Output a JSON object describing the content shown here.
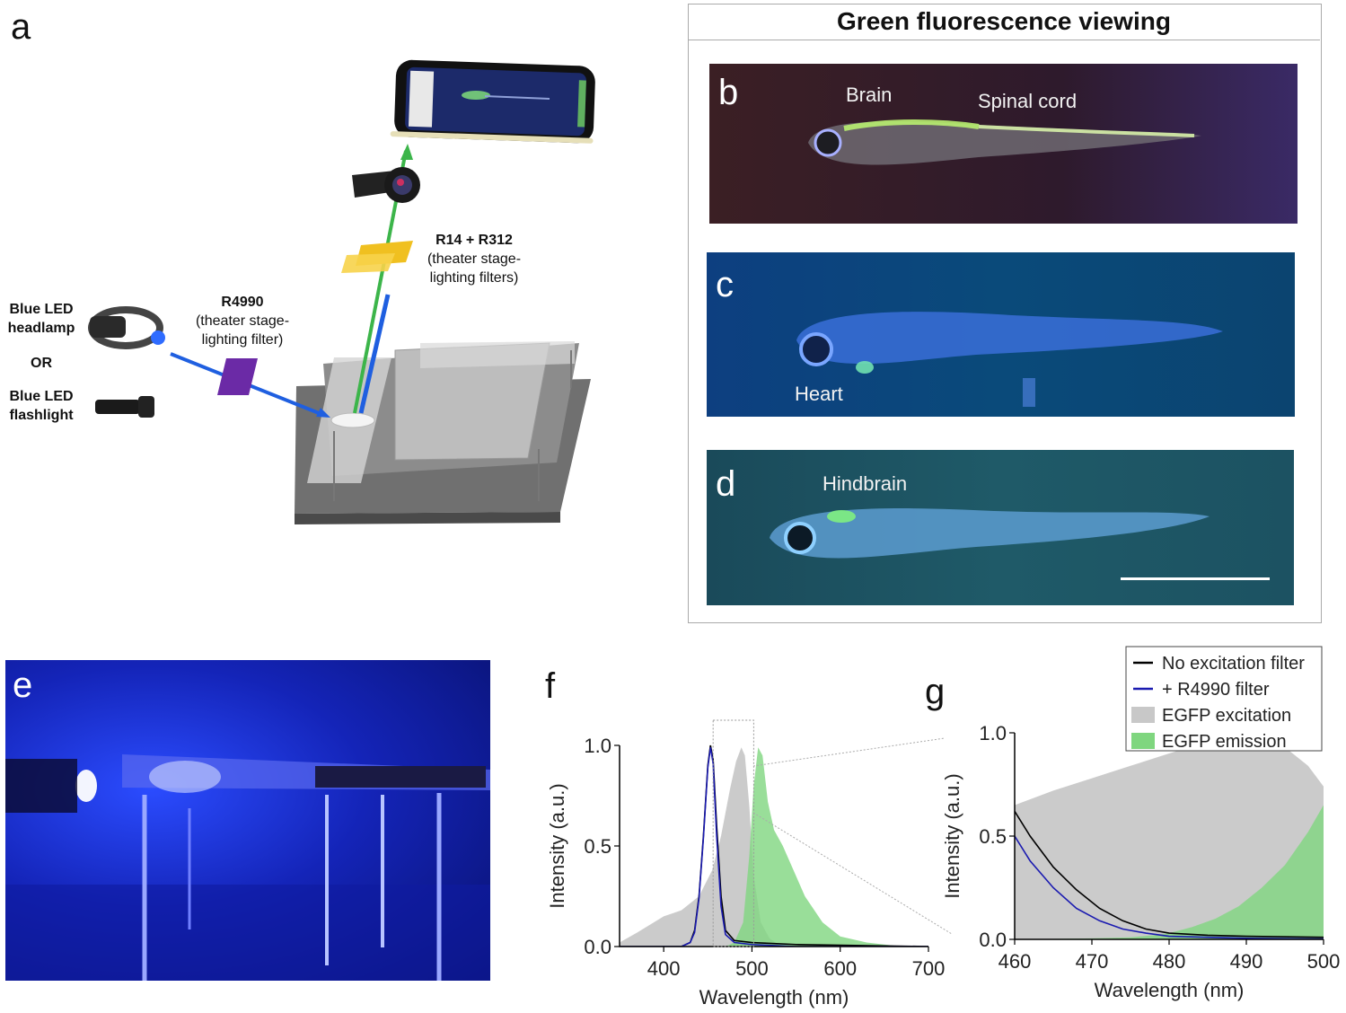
{
  "panel_a": {
    "letter": "a",
    "headlamp": "Blue LED headlamp",
    "or": "OR",
    "flashlight": "Blue LED flashlight",
    "excitation_filter_name": "R4990",
    "excitation_filter_desc": "(theater stage-lighting filter)",
    "emission_filter_name": "R14 + R312",
    "emission_filter_desc": "(theater stage-lighting filters)"
  },
  "fluorescence_box": {
    "title": "Green fluorescence viewing",
    "b": {
      "letter": "b",
      "labels": [
        "Brain",
        "Spinal cord"
      ]
    },
    "c": {
      "letter": "c",
      "labels": [
        "Heart"
      ]
    },
    "d": {
      "letter": "d",
      "labels": [
        "Hindbrain"
      ]
    }
  },
  "panel_e": {
    "letter": "e"
  },
  "panel_f": {
    "letter": "f"
  },
  "panel_g": {
    "letter": "g"
  },
  "chart_data": [
    {
      "panel": "f",
      "type": "line",
      "xlabel": "Wavelength (nm)",
      "ylabel": "Intensity (a.u.)",
      "xlim": [
        350,
        700
      ],
      "ylim": [
        0,
        1.0
      ],
      "xticks": [
        400,
        500,
        600,
        700
      ],
      "yticks": [
        "0.0",
        "0.5",
        "1.0"
      ],
      "series": [
        {
          "name": "No excitation filter",
          "kind": "line",
          "color": "#000000",
          "x": [
            350,
            420,
            430,
            435,
            440,
            445,
            450,
            453,
            456,
            460,
            465,
            470,
            480,
            500,
            550,
            700
          ],
          "y": [
            0,
            0,
            0.02,
            0.08,
            0.25,
            0.55,
            0.9,
            1.0,
            0.93,
            0.6,
            0.25,
            0.08,
            0.03,
            0.02,
            0.01,
            0
          ]
        },
        {
          "name": "+ R4990 filter",
          "kind": "line",
          "color": "#1a1ab0",
          "x": [
            350,
            420,
            430,
            435,
            440,
            445,
            450,
            453,
            456,
            460,
            465,
            470,
            480,
            500,
            550,
            700
          ],
          "y": [
            0,
            0,
            0.02,
            0.07,
            0.24,
            0.54,
            0.89,
            0.99,
            0.91,
            0.55,
            0.2,
            0.06,
            0.02,
            0.01,
            0,
            0
          ]
        },
        {
          "name": "EGFP excitation",
          "kind": "area",
          "color": "#c8c8c8",
          "x": [
            350,
            370,
            400,
            420,
            440,
            455,
            465,
            475,
            482,
            488,
            492,
            497,
            502,
            510,
            520,
            530,
            550
          ],
          "y": [
            0.02,
            0.07,
            0.15,
            0.18,
            0.25,
            0.38,
            0.55,
            0.78,
            0.92,
            0.99,
            0.95,
            0.7,
            0.35,
            0.12,
            0.04,
            0.01,
            0
          ]
        },
        {
          "name": "EGFP emission",
          "kind": "area",
          "color": "#7fd67f",
          "x": [
            470,
            480,
            490,
            497,
            502,
            507,
            512,
            518,
            525,
            535,
            545,
            560,
            580,
            600,
            630,
            670
          ],
          "y": [
            0,
            0.02,
            0.12,
            0.45,
            0.8,
            0.99,
            0.95,
            0.72,
            0.58,
            0.5,
            0.4,
            0.25,
            0.12,
            0.05,
            0.02,
            0
          ]
        }
      ]
    },
    {
      "panel": "g",
      "type": "line",
      "xlabel": "Wavelength (nm)",
      "ylabel": "Intensity (a.u.)",
      "xlim": [
        460,
        500
      ],
      "ylim": [
        0,
        1.0
      ],
      "xticks": [
        460,
        470,
        480,
        490,
        500
      ],
      "yticks": [
        "0.0",
        "0.5",
        "1.0"
      ],
      "legend": {
        "position": "top-right",
        "entries": [
          "No excitation filter",
          "+ R4990 filter",
          "EGFP excitation",
          "EGFP emission"
        ]
      },
      "series": [
        {
          "name": "No excitation filter",
          "kind": "line",
          "color": "#000000",
          "x": [
            460,
            462,
            465,
            468,
            471,
            474,
            477,
            480,
            485,
            490,
            500
          ],
          "y": [
            0.62,
            0.5,
            0.35,
            0.24,
            0.15,
            0.09,
            0.05,
            0.03,
            0.02,
            0.015,
            0.01
          ]
        },
        {
          "name": "+ R4990 filter",
          "kind": "line",
          "color": "#1a1ab0",
          "x": [
            460,
            462,
            465,
            468,
            471,
            474,
            477,
            480,
            485,
            490,
            500
          ],
          "y": [
            0.5,
            0.38,
            0.25,
            0.15,
            0.09,
            0.05,
            0.03,
            0.015,
            0.01,
            0.005,
            0.002
          ]
        },
        {
          "name": "EGFP excitation",
          "kind": "area",
          "color": "#c8c8c8",
          "x": [
            460,
            465,
            470,
            475,
            480,
            485,
            488,
            490,
            492,
            495,
            498,
            500
          ],
          "y": [
            0.65,
            0.72,
            0.78,
            0.84,
            0.9,
            0.96,
            0.99,
            1.0,
            0.98,
            0.93,
            0.84,
            0.74
          ]
        },
        {
          "name": "EGFP emission",
          "kind": "area",
          "color": "#7fd67f",
          "x": [
            460,
            470,
            475,
            478,
            480,
            483,
            486,
            489,
            492,
            495,
            498,
            500
          ],
          "y": [
            0,
            0.005,
            0.01,
            0.02,
            0.03,
            0.06,
            0.1,
            0.16,
            0.25,
            0.36,
            0.52,
            0.65
          ]
        }
      ]
    }
  ]
}
